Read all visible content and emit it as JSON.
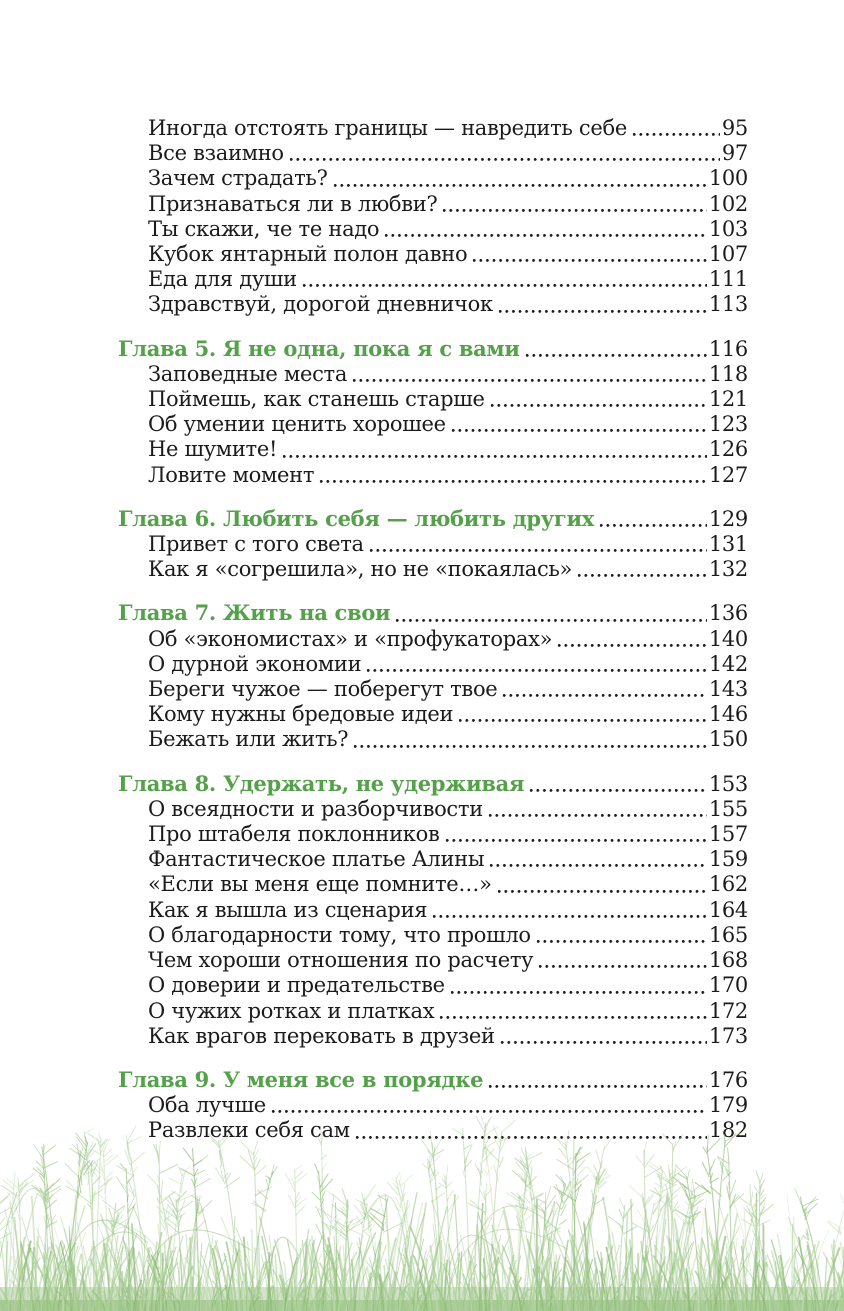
{
  "page": {
    "background": "#ffffff",
    "text_color": "#1b1b1b",
    "chapter_heading_color": "#55a04a",
    "dot_leader_color": "#1d1d1d",
    "grass_colors": [
      "#9cc487",
      "#aed19b",
      "#8bb974",
      "#bcd8aa",
      "#a3ca8e"
    ]
  },
  "toc": {
    "sections": [
      {
        "chapter": null,
        "entries": [
          {
            "title": "Иногда отстоять границы — навредить себе",
            "page": "95"
          },
          {
            "title": "Все взаимно",
            "page": "97"
          },
          {
            "title": "Зачем страдать?",
            "page": "100"
          },
          {
            "title": "Признаваться ли в любви?",
            "page": "102"
          },
          {
            "title": "Ты скажи, че те надо",
            "page": "103"
          },
          {
            "title": "Кубок янтарный полон давно",
            "page": "107"
          },
          {
            "title": "Еда для души",
            "page": "111"
          },
          {
            "title": "Здравствуй, дорогой дневничок",
            "page": "113"
          }
        ]
      },
      {
        "chapter": {
          "label": "Глава 5. Я не одна, пока я с вами",
          "page": "116"
        },
        "entries": [
          {
            "title": "Заповедные места",
            "page": "118"
          },
          {
            "title": "Поймешь, как станешь старше",
            "page": "121"
          },
          {
            "title": "Об умении ценить хорошее",
            "page": "123"
          },
          {
            "title": "Не шумите!",
            "page": "126"
          },
          {
            "title": "Ловите момент",
            "page": "127"
          }
        ]
      },
      {
        "chapter": {
          "label": "Глава 6. Любить себя — любить других",
          "page": "129"
        },
        "entries": [
          {
            "title": "Привет с того света",
            "page": "131"
          },
          {
            "title": "Как я «согрешила», но не «покаялась»",
            "page": "132"
          }
        ]
      },
      {
        "chapter": {
          "label": "Глава 7. Жить на свои",
          "page": "136"
        },
        "entries": [
          {
            "title": "Об «экономистах» и «профукаторах»",
            "page": "140"
          },
          {
            "title": "О дурной экономии",
            "page": "142"
          },
          {
            "title": "Береги чужое — поберегут твое",
            "page": "143"
          },
          {
            "title": "Кому нужны бредовые идеи",
            "page": "146"
          },
          {
            "title": "Бежать или жить?",
            "page": "150"
          }
        ]
      },
      {
        "chapter": {
          "label": "Глава 8. Удержать, не удерживая",
          "page": "153"
        },
        "entries": [
          {
            "title": "О всеядности и разборчивости",
            "page": "155"
          },
          {
            "title": "Про штабеля поклонников",
            "page": "157"
          },
          {
            "title": "Фантастическое платье Алины",
            "page": "159"
          },
          {
            "title": "«Если вы меня еще помните…»",
            "page": "162"
          },
          {
            "title": "Как я вышла из сценария",
            "page": "164"
          },
          {
            "title": "О благодарности тому, что прошло",
            "page": "165"
          },
          {
            "title": "Чем хороши отношения по расчету",
            "page": "168"
          },
          {
            "title": "О доверии и предательстве",
            "page": "170"
          },
          {
            "title": "О чужих ротках и платках",
            "page": "172"
          },
          {
            "title": "Как врагов перековать в друзей",
            "page": "173"
          }
        ]
      },
      {
        "chapter": {
          "label": "Глава 9. У меня все в порядке",
          "page": "176"
        },
        "entries": [
          {
            "title": "Оба лучше",
            "page": "179"
          },
          {
            "title": "Развлеки себя сам",
            "page": "182"
          }
        ]
      }
    ]
  }
}
